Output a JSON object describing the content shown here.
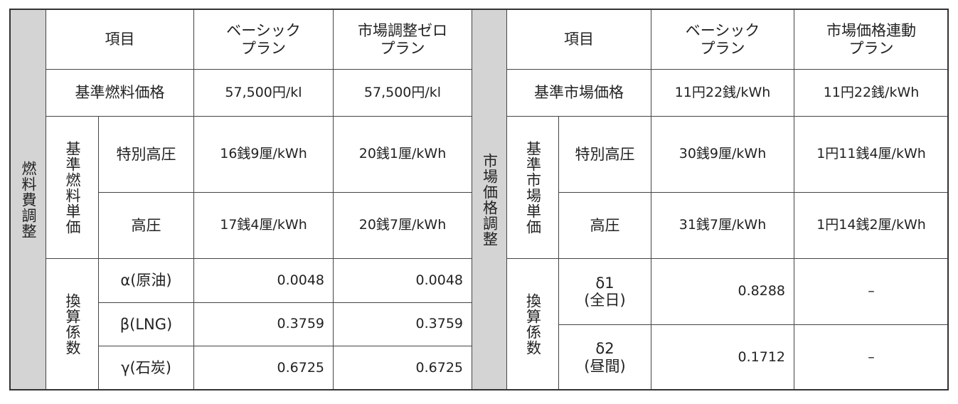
{
  "left": {
    "side_label": "燃料費調整",
    "header": {
      "item": "項目",
      "col1": [
        "ベーシック",
        "プラン"
      ],
      "col2": [
        "市場調整ゼロ",
        "プラン"
      ]
    },
    "base": {
      "label": "基準燃料価格",
      "values": [
        "57,500円/kl",
        "57,500円/kl"
      ]
    },
    "unit_price": {
      "label": "基準燃料単価",
      "rows": [
        {
          "label": "特別高圧",
          "values": [
            "16銭9厘/kWh",
            "20銭1厘/kWh"
          ]
        },
        {
          "label": "高圧",
          "values": [
            "17銭4厘/kWh",
            "20銭7厘/kWh"
          ]
        }
      ]
    },
    "coefficients": {
      "label": "換算係数",
      "rows": [
        {
          "label": [
            "α(原油)"
          ],
          "values": [
            "0.0048",
            "0.0048"
          ]
        },
        {
          "label": [
            "β(LNG)"
          ],
          "values": [
            "0.3759",
            "0.3759"
          ]
        },
        {
          "label": [
            "γ(石炭)"
          ],
          "values": [
            "0.6725",
            "0.6725"
          ]
        }
      ]
    }
  },
  "right": {
    "side_label": "市場価格調整",
    "header": {
      "item": "項目",
      "col1": [
        "ベーシック",
        "プラン"
      ],
      "col2": [
        "市場価格連動",
        "プラン"
      ]
    },
    "base": {
      "label": "基準市場価格",
      "values": [
        "11円22銭/kWh",
        "11円22銭/kWh"
      ]
    },
    "unit_price": {
      "label": "基準市場単価",
      "rows": [
        {
          "label": "特別高圧",
          "values": [
            "30銭9厘/kWh",
            "1円11銭4厘/kWh"
          ]
        },
        {
          "label": "高圧",
          "values": [
            "31銭7厘/kWh",
            "1円14銭2厘/kWh"
          ]
        }
      ]
    },
    "coefficients": {
      "label": "換算係数",
      "rows": [
        {
          "label": [
            "δ1",
            "(全日)"
          ],
          "values": [
            "0.8288",
            "–"
          ]
        },
        {
          "label": [
            "δ2",
            "(昼間)"
          ],
          "values": [
            "0.1712",
            "–"
          ]
        }
      ]
    }
  }
}
